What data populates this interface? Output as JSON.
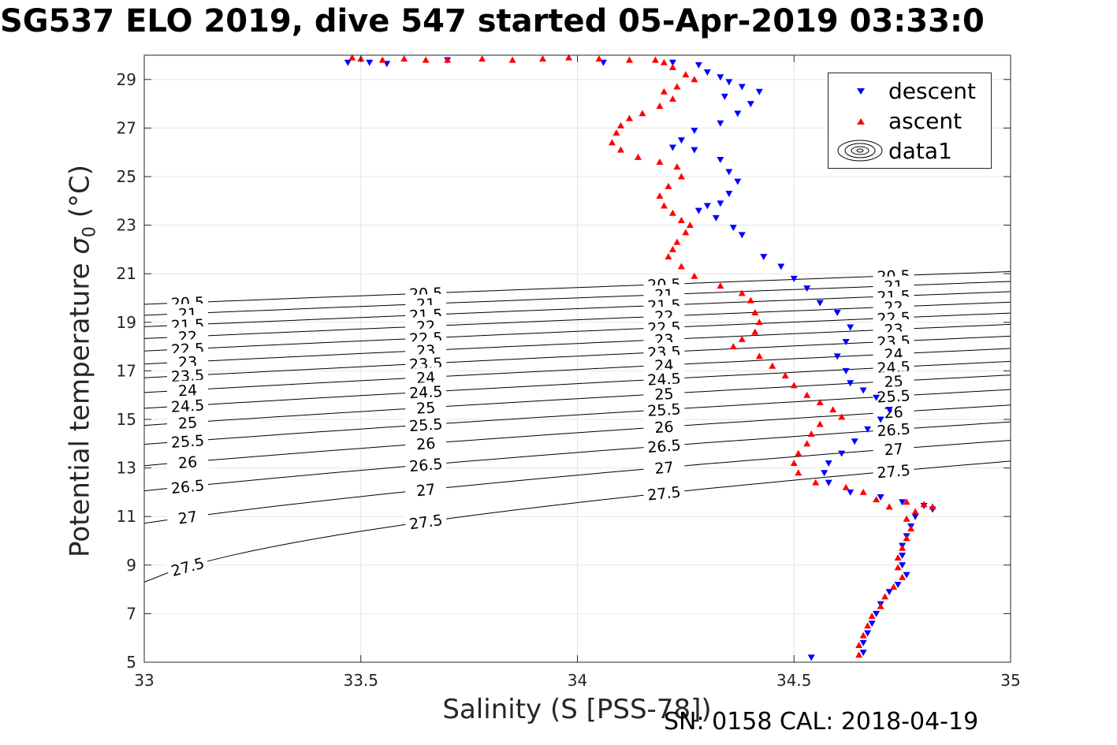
{
  "chart_data": {
    "type": "scatter",
    "title": "SG537 ELO 2019, dive 547 started 05-Apr-2019 03:33:0",
    "xlabel": "Salinity (S [PSS-78])",
    "ylabel_text": "Potential temperature ",
    "ylabel_symbol": "σ",
    "ylabel_sub": "0",
    "ylabel_unit": " (°C)",
    "footer": "SN: 0158  CAL: 2018-04-19",
    "xlim": [
      33,
      35
    ],
    "ylim": [
      5,
      30
    ],
    "xticks": [
      "33",
      "33.5",
      "34",
      "34.5",
      "35"
    ],
    "yticks": [
      "5",
      "7",
      "9",
      "11",
      "13",
      "15",
      "17",
      "19",
      "21",
      "23",
      "25",
      "27",
      "29"
    ],
    "grid": true,
    "legend_position": "top-right",
    "series": [
      {
        "name": "descent",
        "marker": "triangle-down",
        "color": "#0000ff",
        "points": [
          [
            33.47,
            29.7
          ],
          [
            33.52,
            29.7
          ],
          [
            33.56,
            29.65
          ],
          [
            33.7,
            29.8
          ],
          [
            34.06,
            29.7
          ],
          [
            34.22,
            29.7
          ],
          [
            34.28,
            29.6
          ],
          [
            34.3,
            29.3
          ],
          [
            34.33,
            29.1
          ],
          [
            34.35,
            28.9
          ],
          [
            34.38,
            28.7
          ],
          [
            34.42,
            28.5
          ],
          [
            34.34,
            28.3
          ],
          [
            34.4,
            28.0
          ],
          [
            34.37,
            27.6
          ],
          [
            34.33,
            27.2
          ],
          [
            34.27,
            26.9
          ],
          [
            34.24,
            26.5
          ],
          [
            34.22,
            26.2
          ],
          [
            34.27,
            26.1
          ],
          [
            34.33,
            25.7
          ],
          [
            34.35,
            25.2
          ],
          [
            34.37,
            24.8
          ],
          [
            34.35,
            24.3
          ],
          [
            34.33,
            23.9
          ],
          [
            34.3,
            23.8
          ],
          [
            34.28,
            23.6
          ],
          [
            34.32,
            23.3
          ],
          [
            34.36,
            22.9
          ],
          [
            34.38,
            22.6
          ],
          [
            34.43,
            21.7
          ],
          [
            34.47,
            21.3
          ],
          [
            34.5,
            20.8
          ],
          [
            34.53,
            20.4
          ],
          [
            34.56,
            19.8
          ],
          [
            34.6,
            19.4
          ],
          [
            34.63,
            18.8
          ],
          [
            34.62,
            18.2
          ],
          [
            34.6,
            17.6
          ],
          [
            34.62,
            17.0
          ],
          [
            34.63,
            16.5
          ],
          [
            34.66,
            16.2
          ],
          [
            34.69,
            15.9
          ],
          [
            34.72,
            15.4
          ],
          [
            34.7,
            15.0
          ],
          [
            34.67,
            14.6
          ],
          [
            34.64,
            14.1
          ],
          [
            34.61,
            13.6
          ],
          [
            34.58,
            13.2
          ],
          [
            34.57,
            12.8
          ],
          [
            34.58,
            12.4
          ],
          [
            34.63,
            12.0
          ],
          [
            34.7,
            11.8
          ],
          [
            34.75,
            11.6
          ],
          [
            34.8,
            11.45
          ],
          [
            34.82,
            11.3
          ],
          [
            34.78,
            11.0
          ],
          [
            34.77,
            10.6
          ],
          [
            34.76,
            10.2
          ],
          [
            34.75,
            9.8
          ],
          [
            34.75,
            9.4
          ],
          [
            34.75,
            9.0
          ],
          [
            34.76,
            8.6
          ],
          [
            34.74,
            8.2
          ],
          [
            34.72,
            7.9
          ],
          [
            34.7,
            7.4
          ],
          [
            34.69,
            7.0
          ],
          [
            34.68,
            6.6
          ],
          [
            34.67,
            6.2
          ],
          [
            34.66,
            5.8
          ],
          [
            34.66,
            5.4
          ],
          [
            34.54,
            5.2
          ]
        ]
      },
      {
        "name": "ascent",
        "marker": "triangle-up",
        "color": "#ff0000",
        "points": [
          [
            33.48,
            29.9
          ],
          [
            33.5,
            29.85
          ],
          [
            33.55,
            29.8
          ],
          [
            33.6,
            29.85
          ],
          [
            33.65,
            29.8
          ],
          [
            33.7,
            29.8
          ],
          [
            33.78,
            29.85
          ],
          [
            33.85,
            29.8
          ],
          [
            33.92,
            29.85
          ],
          [
            33.98,
            29.9
          ],
          [
            34.05,
            29.85
          ],
          [
            34.12,
            29.8
          ],
          [
            34.18,
            29.8
          ],
          [
            34.2,
            29.7
          ],
          [
            34.22,
            29.5
          ],
          [
            34.25,
            29.2
          ],
          [
            34.27,
            29.0
          ],
          [
            34.23,
            28.7
          ],
          [
            34.2,
            28.5
          ],
          [
            34.22,
            28.2
          ],
          [
            34.19,
            27.9
          ],
          [
            34.15,
            27.6
          ],
          [
            34.12,
            27.4
          ],
          [
            34.1,
            27.1
          ],
          [
            34.09,
            26.8
          ],
          [
            34.08,
            26.4
          ],
          [
            34.1,
            26.1
          ],
          [
            34.14,
            25.8
          ],
          [
            34.19,
            25.6
          ],
          [
            34.23,
            25.4
          ],
          [
            34.24,
            25.0
          ],
          [
            34.21,
            24.6
          ],
          [
            34.19,
            24.2
          ],
          [
            34.2,
            23.8
          ],
          [
            34.22,
            23.5
          ],
          [
            34.24,
            23.2
          ],
          [
            34.26,
            23.0
          ],
          [
            34.25,
            22.7
          ],
          [
            34.23,
            22.3
          ],
          [
            34.22,
            22.0
          ],
          [
            34.21,
            21.7
          ],
          [
            34.24,
            21.3
          ],
          [
            34.27,
            20.9
          ],
          [
            34.33,
            20.5
          ],
          [
            34.38,
            20.2
          ],
          [
            34.4,
            19.9
          ],
          [
            34.41,
            19.4
          ],
          [
            34.42,
            19.0
          ],
          [
            34.41,
            18.6
          ],
          [
            34.38,
            18.3
          ],
          [
            34.36,
            18.0
          ],
          [
            34.42,
            17.6
          ],
          [
            34.45,
            17.2
          ],
          [
            34.48,
            16.8
          ],
          [
            34.5,
            16.4
          ],
          [
            34.53,
            16.0
          ],
          [
            34.56,
            15.7
          ],
          [
            34.59,
            15.4
          ],
          [
            34.61,
            15.1
          ],
          [
            34.56,
            14.8
          ],
          [
            34.54,
            14.4
          ],
          [
            34.53,
            14.0
          ],
          [
            34.51,
            13.6
          ],
          [
            34.5,
            13.2
          ],
          [
            34.51,
            12.8
          ],
          [
            34.55,
            12.4
          ],
          [
            34.62,
            12.2
          ],
          [
            34.66,
            12.0
          ],
          [
            34.69,
            11.7
          ],
          [
            34.72,
            11.4
          ],
          [
            34.76,
            11.6
          ],
          [
            34.8,
            11.5
          ],
          [
            34.82,
            11.4
          ],
          [
            34.78,
            11.2
          ],
          [
            34.76,
            10.9
          ],
          [
            34.77,
            10.5
          ],
          [
            34.76,
            10.1
          ],
          [
            34.75,
            9.7
          ],
          [
            34.74,
            9.3
          ],
          [
            34.74,
            8.9
          ],
          [
            34.75,
            8.5
          ],
          [
            34.73,
            8.1
          ],
          [
            34.71,
            7.7
          ],
          [
            34.7,
            7.3
          ],
          [
            34.68,
            6.9
          ],
          [
            34.67,
            6.5
          ],
          [
            34.66,
            6.1
          ],
          [
            34.65,
            5.7
          ],
          [
            34.65,
            5.3
          ]
        ]
      }
    ],
    "contours": {
      "name": "data1",
      "levels": [
        20.5,
        21,
        21.5,
        22,
        22.5,
        23,
        23.5,
        24,
        24.5,
        25,
        25.5,
        26,
        26.5,
        27,
        27.5
      ]
    }
  },
  "legend": {
    "descent": "descent",
    "ascent": "ascent",
    "contours": "data1"
  }
}
